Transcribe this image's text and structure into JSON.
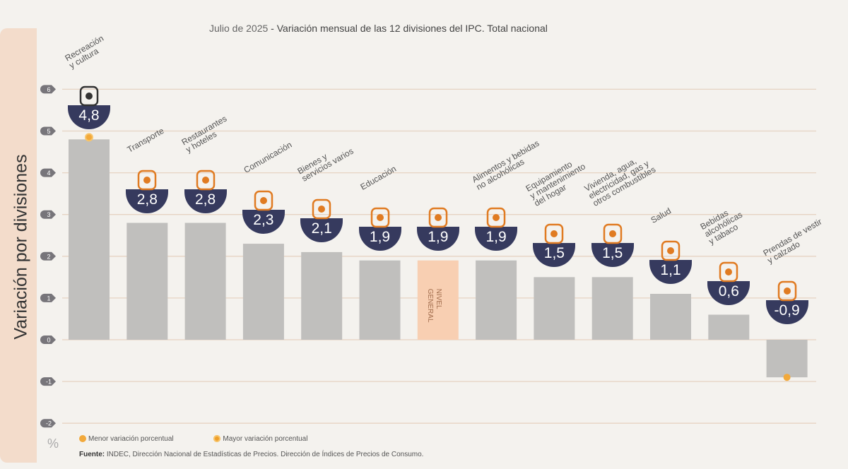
{
  "title": {
    "date": "Julio de 2025",
    "text": " - Variación mensual de las 12 divisiones del IPC. Total nacional"
  },
  "legend": {
    "min_label": "Menor variación porcentual",
    "max_label": "Mayor variación porcentual"
  },
  "source": {
    "label": "Fuente:",
    "text": " INDEC, Dirección Nacional de Estadísticas de Precios. Dirección de Índices de Precios de Consumo."
  },
  "unit": "%",
  "colors": {
    "bar": "#c0bfbd",
    "general_bar": "#f8cfb2",
    "badge": "#363a5e",
    "icon": "#e07b22",
    "marker": "#f2a93b",
    "side_panel": "#f3dccb"
  },
  "chart_data": {
    "type": "bar",
    "title": "Julio de 2025 - Variación mensual de las 12 divisiones del IPC. Total nacional",
    "ylabel": "Variación por divisiones",
    "yunit": "%",
    "ylim": [
      -2,
      6
    ],
    "yticks": [
      "6",
      "5",
      "4",
      "3",
      "2",
      "1",
      "0",
      "-1",
      "-2"
    ],
    "grid": true,
    "categories": [
      "Recreación\ny cultura",
      "Transporte",
      "Restaurantes\ny hoteles",
      "Comunicación",
      "Bienes y\nservicios varios",
      "Educación",
      "NIVEL\nGENERAL",
      "Alimentos y bebidas\nno alcohólicas",
      "Equipamiento\ny mantenimiento\ndel hogar",
      "Vivienda, agua,\nelectricidad, gas y\notros combustibles",
      "Salud",
      "Bebidas\nalcohólicas\ny tabaco",
      "Prendas de vestir\ny calzado"
    ],
    "values": [
      4.8,
      2.8,
      2.8,
      2.3,
      2.1,
      1.9,
      1.9,
      1.9,
      1.5,
      1.5,
      1.1,
      0.6,
      -0.9
    ],
    "value_labels": [
      "4,8",
      "2,8",
      "2,8",
      "2,3",
      "2,1",
      "1,9",
      "1,9",
      "1,9",
      "1,5",
      "1,5",
      "1,1",
      "0,6",
      "-0,9"
    ],
    "highlight": {
      "max": "Recreación y cultura",
      "min": "Prendas de vestir y calzado",
      "general": "NIVEL GENERAL"
    },
    "icons": [
      "umbrella-icon",
      "car-icon",
      "cutlery-icon",
      "phone-icon",
      "scissors-icon",
      "book-icon",
      "basket-icon",
      "chicken-icon",
      "air-conditioner-icon",
      "lightbulb-icon",
      "first-aid-icon",
      "bottle-icon",
      "tshirt-icon"
    ]
  }
}
